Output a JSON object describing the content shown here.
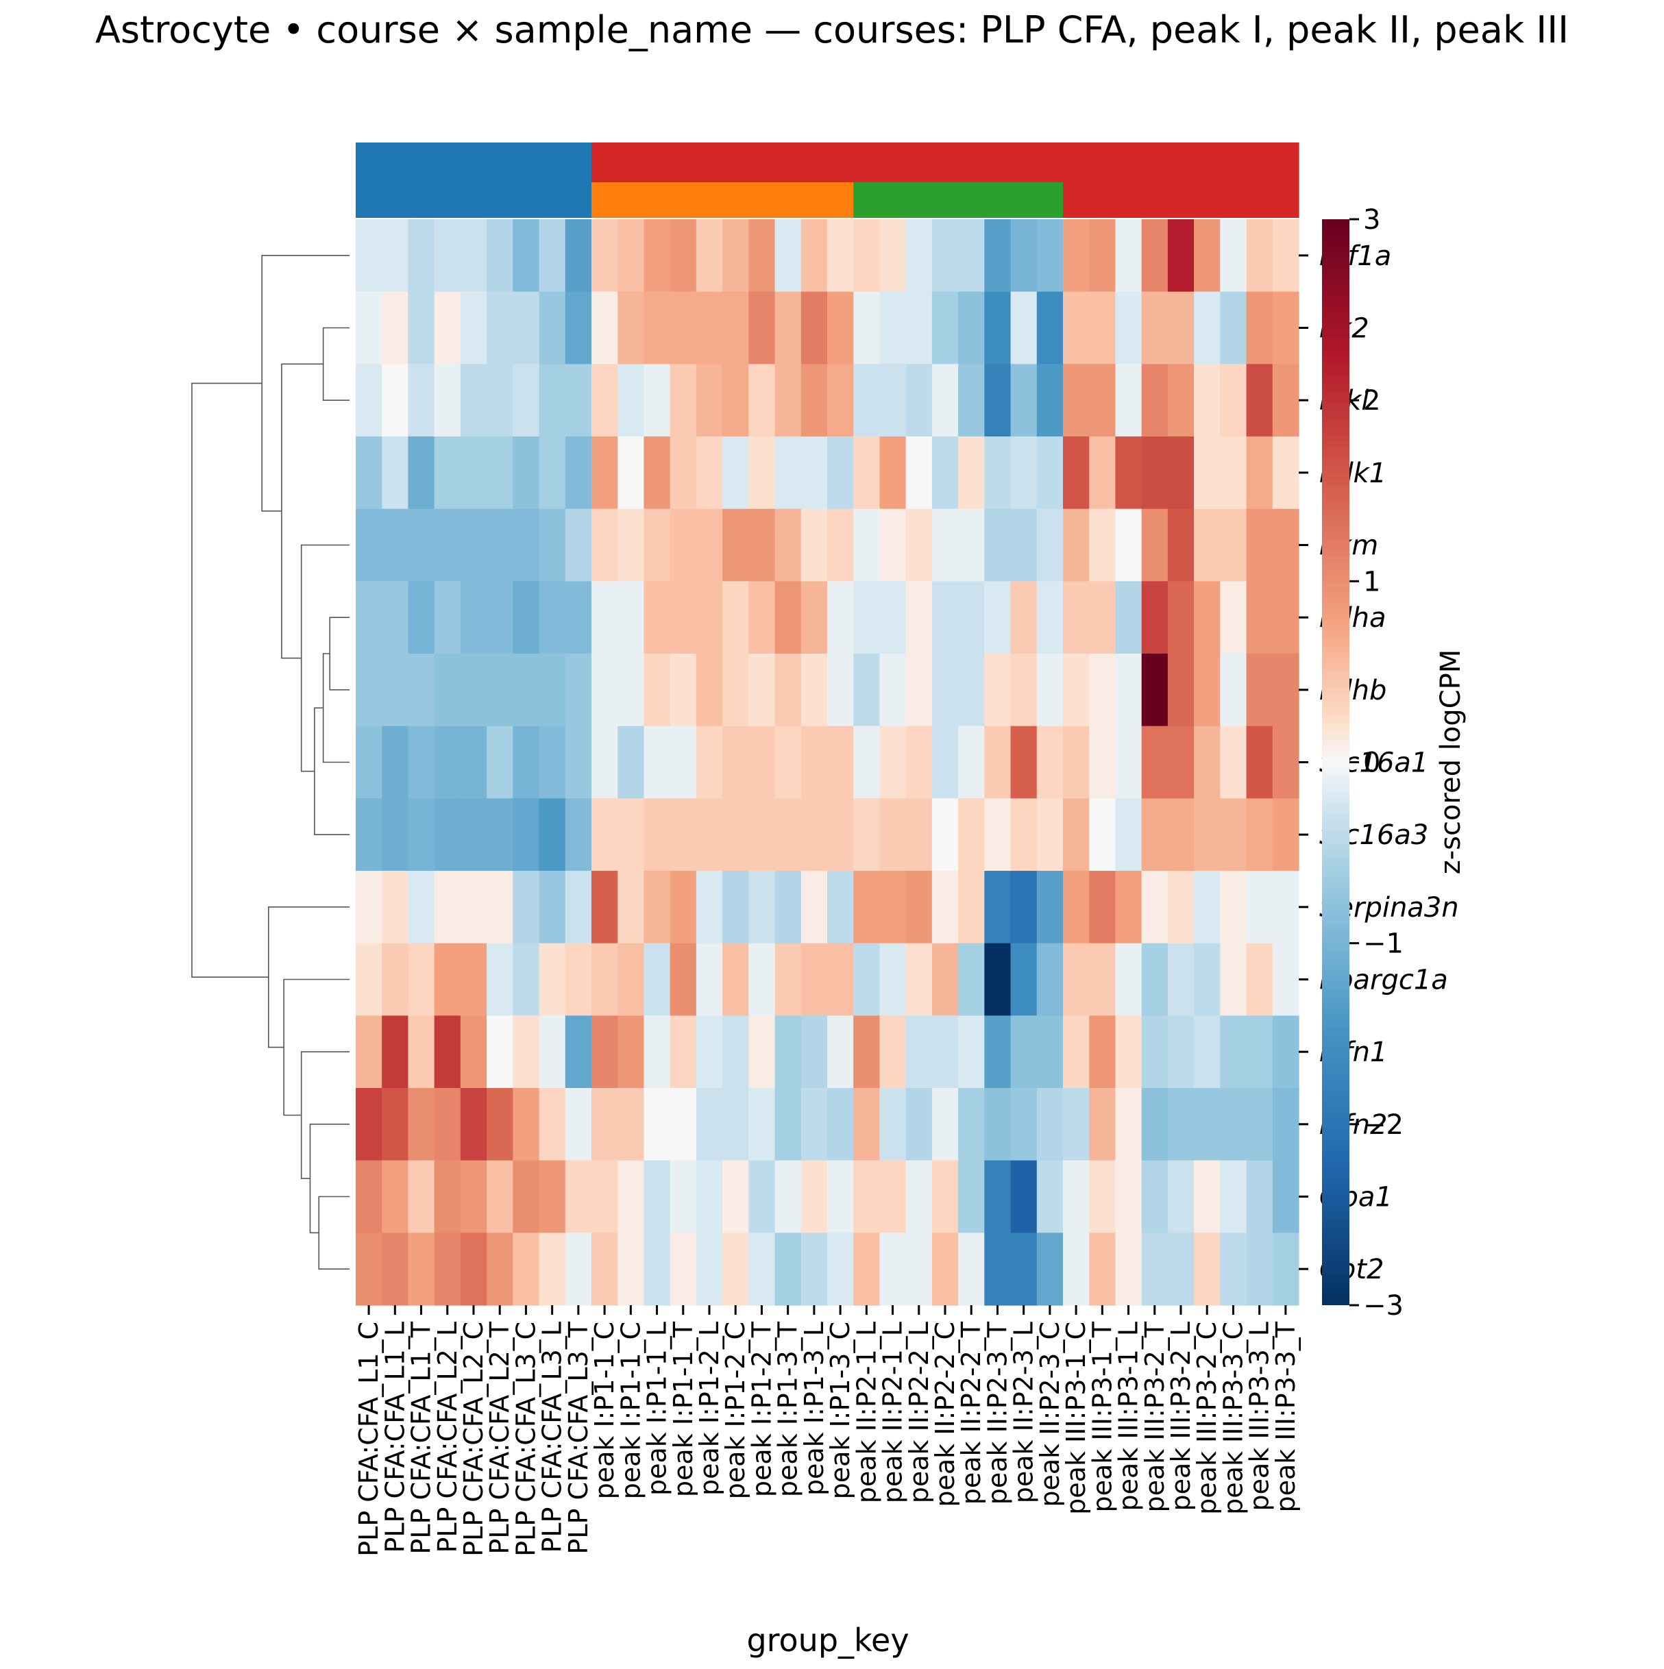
{
  "chart_data": {
    "type": "heatmap",
    "title": "Astrocyte • course × sample_name — courses: PLP CFA, peak I, peak II, peak III",
    "xlabel": "group_key",
    "colorbar_label": "z-scored logCPM",
    "colorbar_range": [
      -3,
      3
    ],
    "colorbar_ticks": [
      "3",
      "2",
      "1",
      "0",
      "−1",
      "−2",
      "−3"
    ],
    "colormap": "RdBu_r",
    "genes": [
      "Hif1a",
      "Pfk2",
      "Pfkl",
      "Pdk1",
      "Pkm",
      "Ldha",
      "Ldhb",
      "Slc16a1",
      "Slc16a3",
      "Serpina3n",
      "Ppargc1a",
      "Mfn1",
      "Mfn2",
      "Opa1",
      "Cpt2"
    ],
    "gene_labels_visible": [
      "Hif1a",
      "Pk2",
      "Pfkl",
      "Pdk1",
      "Pkm",
      "Ldha",
      "Ldhb",
      "Slc16a1",
      "Slc16a3",
      "Serpina3n",
      "Ppargc1a",
      "Mfn1",
      "Mfn2",
      "Opa1",
      "Cpt2"
    ],
    "samples": [
      "PLP CFA:CFA_L1_C",
      "PLP CFA:CFA_L1_L",
      "PLP CFA:CFA_L1_T",
      "PLP CFA:CFA_L2_L",
      "PLP CFA:CFA_L2_C",
      "PLP CFA:CFA_L2_T",
      "PLP CFA:CFA_L3_C",
      "PLP CFA:CFA_L3_L",
      "PLP CFA:CFA_L3_T",
      "peak I:P1-1_C",
      "peak I:P1-1_C",
      "peak I:P1-1_L",
      "peak I:P1-1_T",
      "peak I:P1-2_L",
      "peak I:P1-2_C",
      "peak I:P1-2_T",
      "peak I:P1-3_T",
      "peak I:P1-3_L",
      "peak I:P1-3_C",
      "peak II:P2-1_L",
      "peak II:P2-1_L",
      "peak II:P2-2_L",
      "peak II:P2-2_C",
      "peak II:P2-2_T",
      "peak II:P2-3_T",
      "peak II:P2-3_L",
      "peak II:P2-3_C",
      "peak III:P3-1_C",
      "peak III:P3-1_T",
      "peak III:P3-1_L",
      "peak III:P3-2_T",
      "peak III:P3-2_L",
      "peak III:P3-2_C",
      "peak III:P3-3_C",
      "peak III:P3-3_L",
      "peak III:P3-3_T"
    ],
    "annotation_colors": {
      "blue": "#1f77b4",
      "red": "#d62728",
      "orange": "#ff7f0e",
      "green": "#2ca02c"
    },
    "annotation_row1": [
      "blue",
      "blue",
      "blue",
      "blue",
      "blue",
      "blue",
      "blue",
      "blue",
      "blue",
      "red",
      "red",
      "red",
      "red",
      "red",
      "red",
      "red",
      "red",
      "red",
      "red",
      "red",
      "red",
      "red",
      "red",
      "red",
      "red",
      "red",
      "red",
      "red",
      "red",
      "red",
      "red",
      "red",
      "red",
      "red",
      "red",
      "red"
    ],
    "annotation_row2": [
      "blue",
      "blue",
      "blue",
      "blue",
      "blue",
      "blue",
      "blue",
      "blue",
      "blue",
      "orange",
      "orange",
      "orange",
      "orange",
      "orange",
      "orange",
      "orange",
      "orange",
      "orange",
      "orange",
      "green",
      "green",
      "green",
      "green",
      "green",
      "green",
      "green",
      "green",
      "red",
      "red",
      "red",
      "red",
      "red",
      "red",
      "red",
      "red",
      "red"
    ],
    "values": [
      [
        -0.2,
        -0.2,
        -0.4,
        -0.3,
        -0.3,
        -0.5,
        -0.9,
        -0.5,
        -1.3,
        0.4,
        0.5,
        0.8,
        0.9,
        0.4,
        0.6,
        0.9,
        -0.2,
        0.5,
        0.2,
        0.3,
        0.2,
        -0.2,
        -0.4,
        -0.4,
        -1.3,
        -1.0,
        -0.9,
        0.8,
        0.9,
        -0.1,
        1.1,
        2.2,
        0.9,
        -0.1,
        0.4,
        0.3
      ],
      [
        -0.1,
        0.1,
        -0.4,
        0.1,
        -0.2,
        -0.4,
        -0.4,
        -0.7,
        -1.2,
        0.1,
        0.6,
        0.7,
        0.7,
        0.7,
        0.7,
        1.1,
        0.6,
        1.2,
        0.8,
        -0.1,
        -0.2,
        -0.2,
        -0.6,
        -0.8,
        -1.6,
        -0.2,
        -1.6,
        0.5,
        0.5,
        -0.2,
        0.6,
        0.6,
        -0.2,
        -0.5,
        0.9,
        0.8
      ],
      [
        -0.2,
        0.0,
        -0.3,
        -0.1,
        -0.4,
        -0.4,
        -0.3,
        -0.6,
        -0.6,
        0.3,
        -0.2,
        -0.1,
        0.4,
        0.6,
        0.7,
        0.3,
        0.6,
        0.9,
        0.7,
        -0.3,
        -0.3,
        -0.4,
        -0.1,
        -0.7,
        -1.8,
        -0.8,
        -1.4,
        0.9,
        0.9,
        -0.1,
        1.1,
        0.9,
        0.2,
        0.3,
        1.7,
        0.9
      ],
      [
        -0.7,
        -0.3,
        -1.1,
        -0.6,
        -0.6,
        -0.6,
        -0.8,
        -0.6,
        -0.9,
        0.8,
        0.0,
        0.9,
        0.4,
        0.3,
        -0.2,
        0.2,
        -0.2,
        -0.2,
        -0.4,
        0.3,
        0.8,
        0.0,
        -0.4,
        0.2,
        -0.4,
        -0.3,
        -0.4,
        1.6,
        0.5,
        1.6,
        1.7,
        1.7,
        0.2,
        0.2,
        0.7,
        0.2
      ],
      [
        -0.9,
        -0.9,
        -0.9,
        -0.9,
        -0.9,
        -0.9,
        -0.9,
        -0.8,
        -0.5,
        0.3,
        0.2,
        0.4,
        0.5,
        0.5,
        0.9,
        0.9,
        0.6,
        0.2,
        0.3,
        -0.1,
        0.1,
        0.2,
        -0.1,
        -0.1,
        -0.5,
        -0.5,
        -0.3,
        0.6,
        0.2,
        0.0,
        1.0,
        1.6,
        0.4,
        0.4,
        0.9,
        0.9
      ],
      [
        -0.7,
        -0.7,
        -1.0,
        -0.7,
        -0.9,
        -0.9,
        -1.1,
        -0.9,
        -0.9,
        -0.1,
        -0.1,
        0.5,
        0.5,
        0.5,
        0.3,
        0.5,
        0.9,
        0.6,
        -0.1,
        -0.2,
        -0.2,
        0.1,
        -0.3,
        -0.3,
        -0.2,
        0.4,
        -0.2,
        0.4,
        0.4,
        -0.5,
        1.8,
        1.4,
        0.8,
        0.1,
        0.9,
        0.9
      ],
      [
        -0.7,
        -0.7,
        -0.7,
        -0.8,
        -0.8,
        -0.8,
        -0.8,
        -0.8,
        -0.7,
        -0.1,
        -0.1,
        0.3,
        0.2,
        0.5,
        0.3,
        0.2,
        0.4,
        0.2,
        -0.1,
        -0.4,
        -0.1,
        0.1,
        -0.3,
        -0.3,
        0.2,
        0.3,
        -0.1,
        0.2,
        0.1,
        -0.1,
        3.0,
        1.4,
        0.8,
        -0.1,
        1.1,
        1.1
      ],
      [
        -0.8,
        -1.1,
        -0.9,
        -1.0,
        -1.0,
        -0.6,
        -1.0,
        -0.9,
        -0.7,
        -0.1,
        -0.5,
        -0.1,
        -0.1,
        0.3,
        0.4,
        0.4,
        0.3,
        0.4,
        0.4,
        -0.1,
        0.2,
        0.3,
        -0.3,
        -0.1,
        0.4,
        1.5,
        0.3,
        0.4,
        0.1,
        -0.1,
        1.3,
        1.3,
        0.6,
        0.2,
        1.6,
        1.1
      ],
      [
        -1.0,
        -1.1,
        -1.0,
        -1.1,
        -1.1,
        -1.1,
        -1.2,
        -1.4,
        -0.9,
        0.3,
        0.3,
        0.4,
        0.4,
        0.4,
        0.4,
        0.4,
        0.4,
        0.4,
        0.4,
        0.3,
        0.4,
        0.4,
        0.0,
        0.3,
        0.1,
        0.3,
        0.2,
        0.6,
        0.0,
        -0.2,
        0.7,
        0.7,
        0.6,
        0.6,
        0.7,
        0.8
      ],
      [
        0.1,
        0.2,
        -0.2,
        0.1,
        0.1,
        0.1,
        -0.5,
        -0.7,
        -0.3,
        1.5,
        0.3,
        0.6,
        0.8,
        -0.2,
        -0.5,
        -0.3,
        -0.5,
        0.1,
        -0.4,
        0.8,
        0.8,
        0.9,
        0.1,
        0.3,
        -1.8,
        -2.0,
        -1.3,
        0.8,
        1.2,
        0.8,
        0.1,
        0.2,
        -0.2,
        0.1,
        -0.1,
        -0.1
      ],
      [
        0.2,
        0.4,
        0.3,
        0.8,
        0.8,
        -0.2,
        -0.4,
        0.2,
        0.3,
        0.4,
        0.5,
        -0.3,
        1.0,
        -0.1,
        0.5,
        -0.1,
        0.4,
        0.5,
        0.5,
        -0.4,
        -0.2,
        0.2,
        0.6,
        -0.6,
        -3.0,
        -1.6,
        -0.9,
        0.4,
        0.4,
        -0.1,
        -0.6,
        -0.3,
        -0.4,
        0.1,
        0.3,
        -0.1
      ],
      [
        0.6,
        1.9,
        0.4,
        1.9,
        0.9,
        0.0,
        0.2,
        -0.1,
        -1.2,
        1.1,
        0.9,
        -0.1,
        0.3,
        -0.2,
        -0.3,
        0.1,
        -0.6,
        -0.5,
        -0.1,
        1.0,
        0.3,
        -0.3,
        -0.3,
        -0.2,
        -1.3,
        -0.8,
        -0.8,
        0.3,
        0.9,
        0.2,
        -0.5,
        -0.4,
        -0.3,
        -0.6,
        -0.6,
        -0.8
      ],
      [
        1.8,
        1.6,
        1.0,
        1.1,
        1.8,
        1.4,
        0.8,
        0.3,
        -0.1,
        0.4,
        0.4,
        0.0,
        0.0,
        -0.3,
        -0.3,
        -0.2,
        -0.6,
        -0.4,
        -0.5,
        0.6,
        -0.3,
        -0.5,
        -0.1,
        -0.6,
        -0.8,
        -0.7,
        -0.5,
        -0.4,
        0.6,
        0.1,
        -0.8,
        -0.7,
        -0.7,
        -0.7,
        -0.7,
        -0.9
      ],
      [
        1.1,
        0.8,
        0.4,
        1.0,
        0.9,
        0.5,
        1.0,
        0.9,
        0.3,
        0.3,
        0.1,
        -0.3,
        -0.1,
        -0.2,
        0.1,
        -0.4,
        -0.1,
        0.2,
        -0.1,
        0.3,
        0.3,
        -0.1,
        0.3,
        -0.6,
        -1.8,
        -2.3,
        -0.4,
        -0.1,
        0.2,
        0.1,
        -0.5,
        -0.3,
        0.1,
        -0.2,
        -0.5,
        -0.9
      ],
      [
        1.0,
        1.1,
        0.8,
        1.1,
        1.3,
        0.9,
        0.5,
        0.2,
        -0.1,
        0.4,
        0.1,
        -0.3,
        0.1,
        -0.2,
        0.2,
        -0.2,
        -0.6,
        -0.4,
        -0.2,
        0.5,
        -0.1,
        -0.1,
        0.5,
        -0.1,
        -1.8,
        -1.8,
        -1.2,
        -0.1,
        0.5,
        0.1,
        -0.4,
        -0.4,
        0.3,
        -0.4,
        -0.5,
        -0.6
      ]
    ],
    "dendrogram_leaf_order": [
      0,
      1,
      2,
      3,
      4,
      5,
      6,
      7,
      8,
      9,
      10,
      11,
      12,
      13,
      14
    ]
  }
}
